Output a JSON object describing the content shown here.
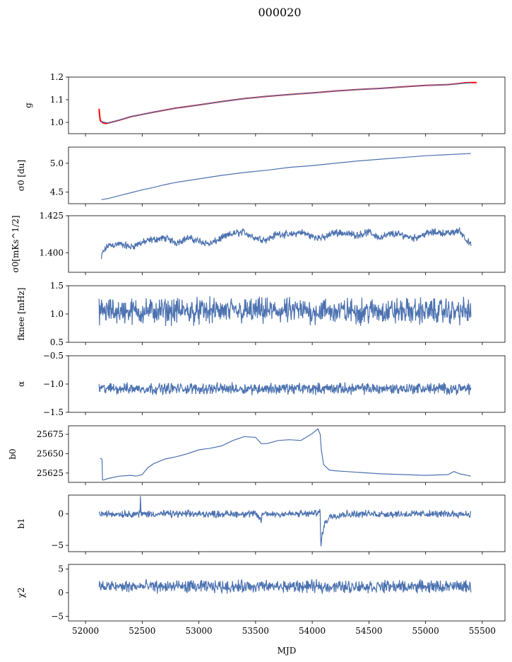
{
  "title": "000020",
  "xlabel": "MJD",
  "chart_data": [
    {
      "type": "line",
      "id": "g",
      "ylabel": "g",
      "ylim": [
        0.95,
        1.2
      ],
      "yticks": [
        1.0,
        1.1,
        1.2
      ],
      "ytick_labels": [
        "1.0",
        "1.1",
        "1.2"
      ],
      "series": [
        {
          "color": "#ff0000",
          "x": [
            52120,
            52125,
            52130,
            52135,
            52140,
            52150,
            52160,
            52180,
            52200,
            52300,
            52400,
            52500,
            52600,
            52800,
            53000,
            53200,
            53400,
            53600,
            53800,
            54000,
            54200,
            54400,
            54600,
            54800,
            55000,
            55200,
            55300,
            55350,
            55400,
            55450
          ],
          "y": [
            1.06,
            1.03,
            1.01,
            1.005,
            1.003,
            1.0,
            0.997,
            0.995,
            0.997,
            1.01,
            1.025,
            1.035,
            1.045,
            1.063,
            1.077,
            1.092,
            1.105,
            1.115,
            1.123,
            1.13,
            1.138,
            1.145,
            1.15,
            1.157,
            1.163,
            1.167,
            1.172,
            1.175,
            1.176,
            1.176
          ]
        },
        {
          "color": "#4c72b0",
          "x": [
            52140,
            52200,
            52400,
            52600,
            52800,
            53000,
            53200,
            53400,
            53600,
            53800,
            54000,
            54200,
            54400,
            54600,
            54800,
            55000,
            55200,
            55400
          ],
          "y": [
            1.003,
            0.997,
            1.025,
            1.045,
            1.063,
            1.077,
            1.092,
            1.105,
            1.115,
            1.123,
            1.13,
            1.138,
            1.145,
            1.15,
            1.157,
            1.163,
            1.167,
            1.175
          ]
        }
      ]
    },
    {
      "type": "line",
      "id": "sigma0_du",
      "ylabel": "σ0 [du]",
      "ylim": [
        4.3,
        5.28
      ],
      "yticks": [
        4.5,
        5.0
      ],
      "ytick_labels": [
        "4.5",
        "5.0"
      ],
      "series": [
        {
          "color": "#4c72b0",
          "x": [
            52140,
            52200,
            52300,
            52400,
            52500,
            52600,
            52700,
            52800,
            53000,
            53200,
            53400,
            53600,
            53800,
            54000,
            54200,
            54400,
            54600,
            54800,
            55000,
            55200,
            55400
          ],
          "y": [
            4.37,
            4.39,
            4.44,
            4.49,
            4.54,
            4.58,
            4.63,
            4.67,
            4.73,
            4.79,
            4.84,
            4.88,
            4.93,
            4.96,
            5.0,
            5.04,
            5.07,
            5.1,
            5.13,
            5.15,
            5.17
          ]
        }
      ]
    },
    {
      "type": "line",
      "id": "sigma0_mks",
      "ylabel": "σ0[mKs^1/2]",
      "ylim": [
        1.387,
        1.425
      ],
      "yticks": [
        1.4,
        1.425
      ],
      "ytick_labels": [
        "1.400",
        "1.425"
      ],
      "series": [
        {
          "color": "#4c72b0",
          "noise": 0.0015,
          "x": [
            52140,
            52150,
            52200,
            52300,
            52400,
            52500,
            52600,
            52700,
            52800,
            52900,
            53000,
            53100,
            53200,
            53300,
            53400,
            53500,
            53600,
            53700,
            53800,
            53900,
            54000,
            54100,
            54200,
            54300,
            54400,
            54500,
            54600,
            54700,
            54800,
            54900,
            55000,
            55100,
            55200,
            55300,
            55350,
            55400
          ],
          "y": [
            1.396,
            1.4,
            1.405,
            1.406,
            1.404,
            1.407,
            1.409,
            1.41,
            1.407,
            1.41,
            1.408,
            1.406,
            1.41,
            1.413,
            1.414,
            1.41,
            1.409,
            1.413,
            1.412,
            1.414,
            1.411,
            1.41,
            1.414,
            1.413,
            1.412,
            1.414,
            1.41,
            1.413,
            1.412,
            1.41,
            1.413,
            1.414,
            1.413,
            1.415,
            1.41,
            1.405
          ]
        }
      ]
    },
    {
      "type": "line",
      "id": "fknee",
      "ylabel": "fknee [mHz]",
      "ylim": [
        0.5,
        1.5
      ],
      "yticks": [
        0.5,
        1.0,
        1.5
      ],
      "ytick_labels": [
        "0.5",
        "1.0",
        "1.5"
      ],
      "series": [
        {
          "color": "#4c72b0",
          "noise": 0.14,
          "x": [
            52120,
            55400
          ],
          "y": [
            1.05,
            1.05
          ]
        }
      ]
    },
    {
      "type": "line",
      "id": "alpha",
      "ylabel": "α",
      "ylim": [
        -1.5,
        -0.5
      ],
      "yticks": [
        -1.5,
        -1.0,
        -0.5
      ],
      "ytick_labels": [
        "−1.5",
        "−1.0",
        "−0.5"
      ],
      "series": [
        {
          "color": "#4c72b0",
          "noise": 0.06,
          "x": [
            52120,
            55400
          ],
          "y": [
            -1.08,
            -1.08
          ]
        }
      ]
    },
    {
      "type": "line",
      "id": "b0",
      "ylabel": "b0",
      "ylim": [
        25613,
        25686
      ],
      "yticks": [
        25625,
        25650,
        25675
      ],
      "ytick_labels": [
        "25625",
        "25650",
        "25675"
      ],
      "series": [
        {
          "color": "#4c72b0",
          "x": [
            52130,
            52145,
            52150,
            52160,
            52200,
            52300,
            52400,
            52450,
            52500,
            52550,
            52600,
            52700,
            52800,
            52900,
            53000,
            53100,
            53200,
            53300,
            53400,
            53500,
            53550,
            53600,
            53700,
            53800,
            53900,
            54000,
            54050,
            54070,
            54080,
            54100,
            54150,
            54200,
            54300,
            54400,
            54600,
            54800,
            55000,
            55200,
            55250,
            55300,
            55400
          ],
          "y": [
            25644,
            25643,
            25616,
            25616,
            25618,
            25621,
            25622,
            25621,
            25623,
            25632,
            25637,
            25643,
            25646,
            25650,
            25655,
            25657,
            25660,
            25667,
            25672,
            25671,
            25663,
            25663,
            25667,
            25668,
            25667,
            25676,
            25682,
            25675,
            25655,
            25636,
            25629,
            25628,
            25627,
            25626,
            25624,
            25623,
            25622,
            25623,
            25627,
            25624,
            25621
          ]
        }
      ]
    },
    {
      "type": "line",
      "id": "b1",
      "ylabel": "b1",
      "ylim": [
        -6,
        3
      ],
      "yticks": [
        -5,
        0
      ],
      "ytick_labels": [
        "−5",
        "0"
      ],
      "series": [
        {
          "color": "#4c72b0",
          "noise": 0.35,
          "x": [
            52120,
            52480,
            52485,
            52490,
            53500,
            53550,
            53560,
            54000,
            54050,
            54070,
            54075,
            54090,
            54110,
            54150,
            54200,
            54300,
            55400
          ],
          "y": [
            0,
            0,
            2.8,
            0,
            0,
            -1.0,
            0,
            0,
            0.3,
            0.3,
            -5.3,
            -3.0,
            -1.5,
            -0.5,
            -0.2,
            0,
            0
          ]
        }
      ]
    },
    {
      "type": "line",
      "id": "chi2",
      "ylabel": "χ2",
      "ylim": [
        -6,
        6
      ],
      "yticks": [
        -5,
        0,
        5
      ],
      "ytick_labels": [
        "−5",
        "0",
        "5"
      ],
      "series": [
        {
          "color": "#4c72b0",
          "noise": 0.8,
          "x": [
            52120,
            55400
          ],
          "y": [
            1.3,
            1.3
          ]
        }
      ]
    }
  ],
  "xaxis": {
    "xlim": [
      51850,
      55700
    ],
    "ticks": [
      52000,
      52500,
      53000,
      53500,
      54000,
      54500,
      55000,
      55500
    ],
    "tick_labels": [
      "52000",
      "52500",
      "53000",
      "53500",
      "54000",
      "54500",
      "55000",
      "55500"
    ]
  }
}
